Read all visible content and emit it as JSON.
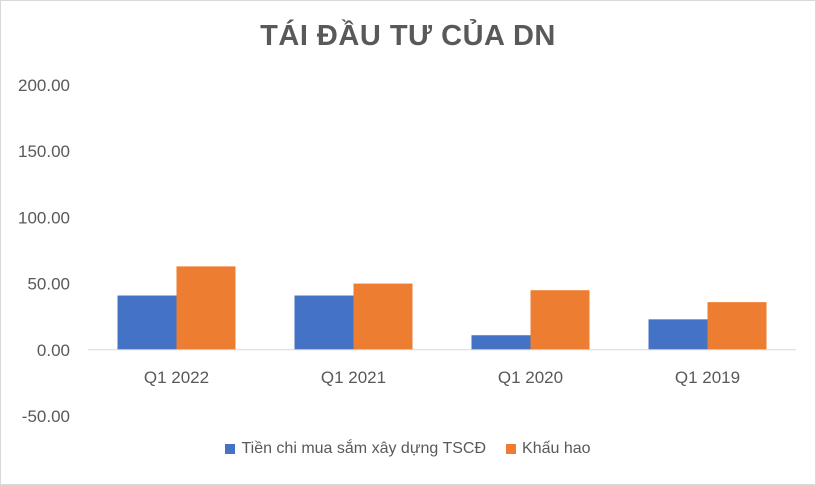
{
  "chart_data": {
    "type": "bar",
    "title": "TÁI ĐẦU TƯ CỦA DN",
    "categories": [
      "Q1 2022",
      "Q1 2021",
      "Q1 2020",
      "Q1 2019"
    ],
    "series": [
      {
        "name": "Tiền chi mua sắm xây dựng TSCĐ",
        "color": "#4472c4",
        "values": [
          41,
          41,
          11,
          23
        ]
      },
      {
        "name": "Khấu hao",
        "color": "#ed7d31",
        "values": [
          63,
          50,
          45,
          36
        ]
      }
    ],
    "ylim": [
      -50,
      200
    ],
    "yticks": [
      "200.00",
      "150.00",
      "100.00",
      "50.00",
      "0.00",
      "-50.00"
    ],
    "ytick_values": [
      200,
      150,
      100,
      50,
      0,
      -50
    ],
    "grid": false,
    "legend_position": "bottom"
  }
}
